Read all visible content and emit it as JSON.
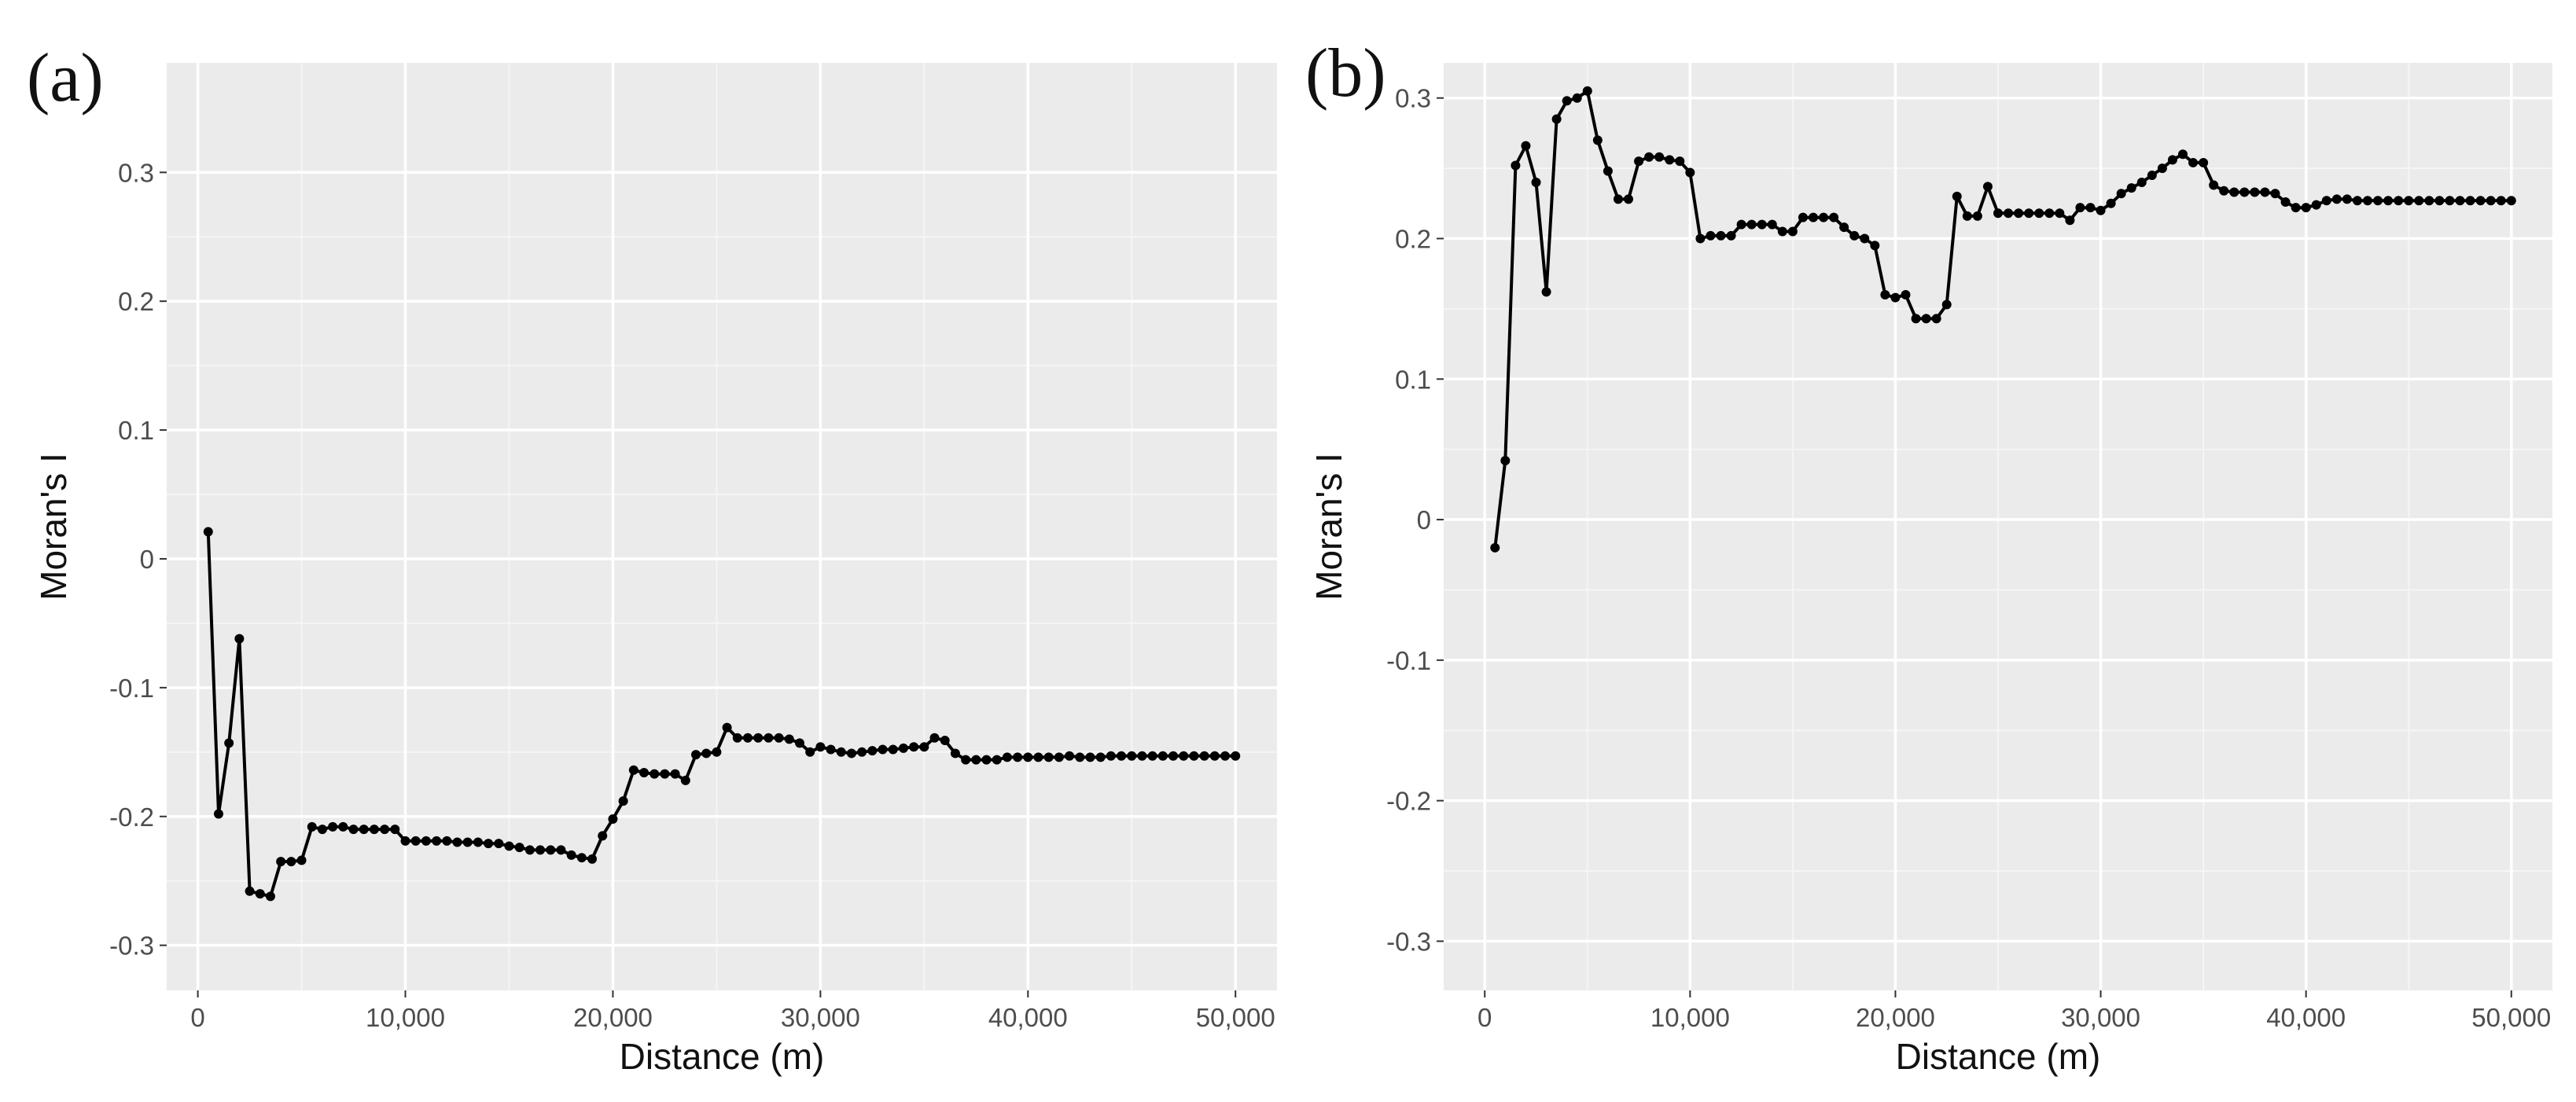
{
  "colors": {
    "panel_background": "#EBEBEB",
    "grid_major": "#FFFFFF",
    "grid_minor": "#F5F5F5",
    "line": "#000000",
    "tick_text": "#4D4D4D"
  },
  "chart_data": [
    {
      "type": "line",
      "panel_label": "(a)",
      "xlabel": "Distance (m)",
      "ylabel": "Moran's I",
      "xlim": [
        -1500,
        52000
      ],
      "ylim": [
        -0.335,
        0.385
      ],
      "xticks": [
        0,
        10000,
        20000,
        30000,
        40000,
        50000
      ],
      "xtick_labels": [
        "0",
        "10,000",
        "20,000",
        "30,000",
        "40,000",
        "50,000"
      ],
      "yticks": [
        -0.3,
        -0.2,
        -0.1,
        0,
        0.1,
        0.2,
        0.3
      ],
      "ytick_labels": [
        "-0.3",
        "-0.2",
        "-0.1",
        "0",
        "0.1",
        "0.2",
        "0.3"
      ],
      "grid": true,
      "markers": true,
      "x": [
        500,
        1000,
        1500,
        2000,
        2500,
        3000,
        3500,
        4000,
        4500,
        5000,
        5500,
        6000,
        6500,
        7000,
        7500,
        8000,
        8500,
        9000,
        9500,
        10000,
        10500,
        11000,
        11500,
        12000,
        12500,
        13000,
        13500,
        14000,
        14500,
        15000,
        15500,
        16000,
        16500,
        17000,
        17500,
        18000,
        18500,
        19000,
        19500,
        20000,
        20500,
        21000,
        21500,
        22000,
        22500,
        23000,
        23500,
        24000,
        24500,
        25000,
        25500,
        26000,
        26500,
        27000,
        27500,
        28000,
        28500,
        29000,
        29500,
        30000,
        30500,
        31000,
        31500,
        32000,
        32500,
        33000,
        33500,
        34000,
        34500,
        35000,
        35500,
        36000,
        36500,
        37000,
        37500,
        38000,
        38500,
        39000,
        39500,
        40000,
        40500,
        41000,
        41500,
        42000,
        42500,
        43000,
        43500,
        44000,
        44500,
        45000,
        45500,
        46000,
        46500,
        47000,
        47500,
        48000,
        48500,
        49000,
        49500,
        50000
      ],
      "y": [
        0.021,
        -0.198,
        -0.143,
        -0.062,
        -0.258,
        -0.26,
        -0.262,
        -0.235,
        -0.235,
        -0.234,
        -0.208,
        -0.21,
        -0.208,
        -0.208,
        -0.21,
        -0.21,
        -0.21,
        -0.21,
        -0.21,
        -0.219,
        -0.219,
        -0.219,
        -0.219,
        -0.219,
        -0.22,
        -0.22,
        -0.22,
        -0.221,
        -0.221,
        -0.223,
        -0.224,
        -0.226,
        -0.226,
        -0.226,
        -0.226,
        -0.23,
        -0.232,
        -0.233,
        -0.215,
        -0.202,
        -0.188,
        -0.164,
        -0.166,
        -0.167,
        -0.167,
        -0.167,
        -0.172,
        -0.152,
        -0.151,
        -0.15,
        -0.131,
        -0.139,
        -0.139,
        -0.139,
        -0.139,
        -0.139,
        -0.14,
        -0.143,
        -0.15,
        -0.146,
        -0.148,
        -0.15,
        -0.151,
        -0.15,
        -0.149,
        -0.148,
        -0.148,
        -0.147,
        -0.146,
        -0.146,
        -0.139,
        -0.141,
        -0.151,
        -0.156,
        -0.156,
        -0.156,
        -0.156,
        -0.154,
        -0.154,
        -0.154,
        -0.154,
        -0.154,
        -0.154,
        -0.153,
        -0.154,
        -0.154,
        -0.154,
        -0.153,
        -0.153,
        -0.153,
        -0.153,
        -0.153,
        -0.153,
        -0.153,
        -0.153,
        -0.153,
        -0.153,
        -0.153,
        -0.153,
        -0.153
      ]
    },
    {
      "type": "line",
      "panel_label": "(b)",
      "xlabel": "Distance (m)",
      "ylabel": "Moran's I",
      "xlim": [
        -2000,
        52000
      ],
      "ylim": [
        -0.335,
        0.325
      ],
      "xticks": [
        0,
        10000,
        20000,
        30000,
        40000,
        50000
      ],
      "xtick_labels": [
        "0",
        "10,000",
        "20,000",
        "30,000",
        "40,000",
        "50,000"
      ],
      "yticks": [
        -0.3,
        -0.2,
        -0.1,
        0,
        0.1,
        0.2,
        0.3
      ],
      "ytick_labels": [
        "-0.3",
        "-0.2",
        "-0.1",
        "0",
        "0.1",
        "0.2",
        "0.3"
      ],
      "grid": true,
      "markers": true,
      "x": [
        500,
        1000,
        1500,
        2000,
        2500,
        3000,
        3500,
        4000,
        4500,
        5000,
        5500,
        6000,
        6500,
        7000,
        7500,
        8000,
        8500,
        9000,
        9500,
        10000,
        10500,
        11000,
        11500,
        12000,
        12500,
        13000,
        13500,
        14000,
        14500,
        15000,
        15500,
        16000,
        16500,
        17000,
        17500,
        18000,
        18500,
        19000,
        19500,
        20000,
        20500,
        21000,
        21500,
        22000,
        22500,
        23000,
        23500,
        24000,
        24500,
        25000,
        25500,
        26000,
        26500,
        27000,
        27500,
        28000,
        28500,
        29000,
        29500,
        30000,
        30500,
        31000,
        31500,
        32000,
        32500,
        33000,
        33500,
        34000,
        34500,
        35000,
        35500,
        36000,
        36500,
        37000,
        37500,
        38000,
        38500,
        39000,
        39500,
        40000,
        40500,
        41000,
        41500,
        42000,
        42500,
        43000,
        43500,
        44000,
        44500,
        45000,
        45500,
        46000,
        46500,
        47000,
        47500,
        48000,
        48500,
        49000,
        49500,
        50000
      ],
      "y": [
        -0.02,
        0.042,
        0.252,
        0.266,
        0.24,
        0.162,
        0.285,
        0.298,
        0.3,
        0.305,
        0.27,
        0.248,
        0.228,
        0.228,
        0.255,
        0.258,
        0.258,
        0.256,
        0.255,
        0.247,
        0.2,
        0.202,
        0.202,
        0.202,
        0.21,
        0.21,
        0.21,
        0.21,
        0.205,
        0.205,
        0.215,
        0.215,
        0.215,
        0.215,
        0.208,
        0.202,
        0.2,
        0.195,
        0.16,
        0.158,
        0.16,
        0.143,
        0.143,
        0.143,
        0.153,
        0.23,
        0.216,
        0.216,
        0.237,
        0.218,
        0.218,
        0.218,
        0.218,
        0.218,
        0.218,
        0.218,
        0.213,
        0.222,
        0.222,
        0.22,
        0.225,
        0.232,
        0.236,
        0.24,
        0.245,
        0.25,
        0.256,
        0.26,
        0.254,
        0.254,
        0.238,
        0.234,
        0.233,
        0.233,
        0.233,
        0.233,
        0.232,
        0.226,
        0.222,
        0.222,
        0.224,
        0.227,
        0.228,
        0.228,
        0.227,
        0.227,
        0.227,
        0.227,
        0.227,
        0.227,
        0.227,
        0.227,
        0.227,
        0.227,
        0.227,
        0.227,
        0.227,
        0.227,
        0.227,
        0.227
      ]
    }
  ]
}
